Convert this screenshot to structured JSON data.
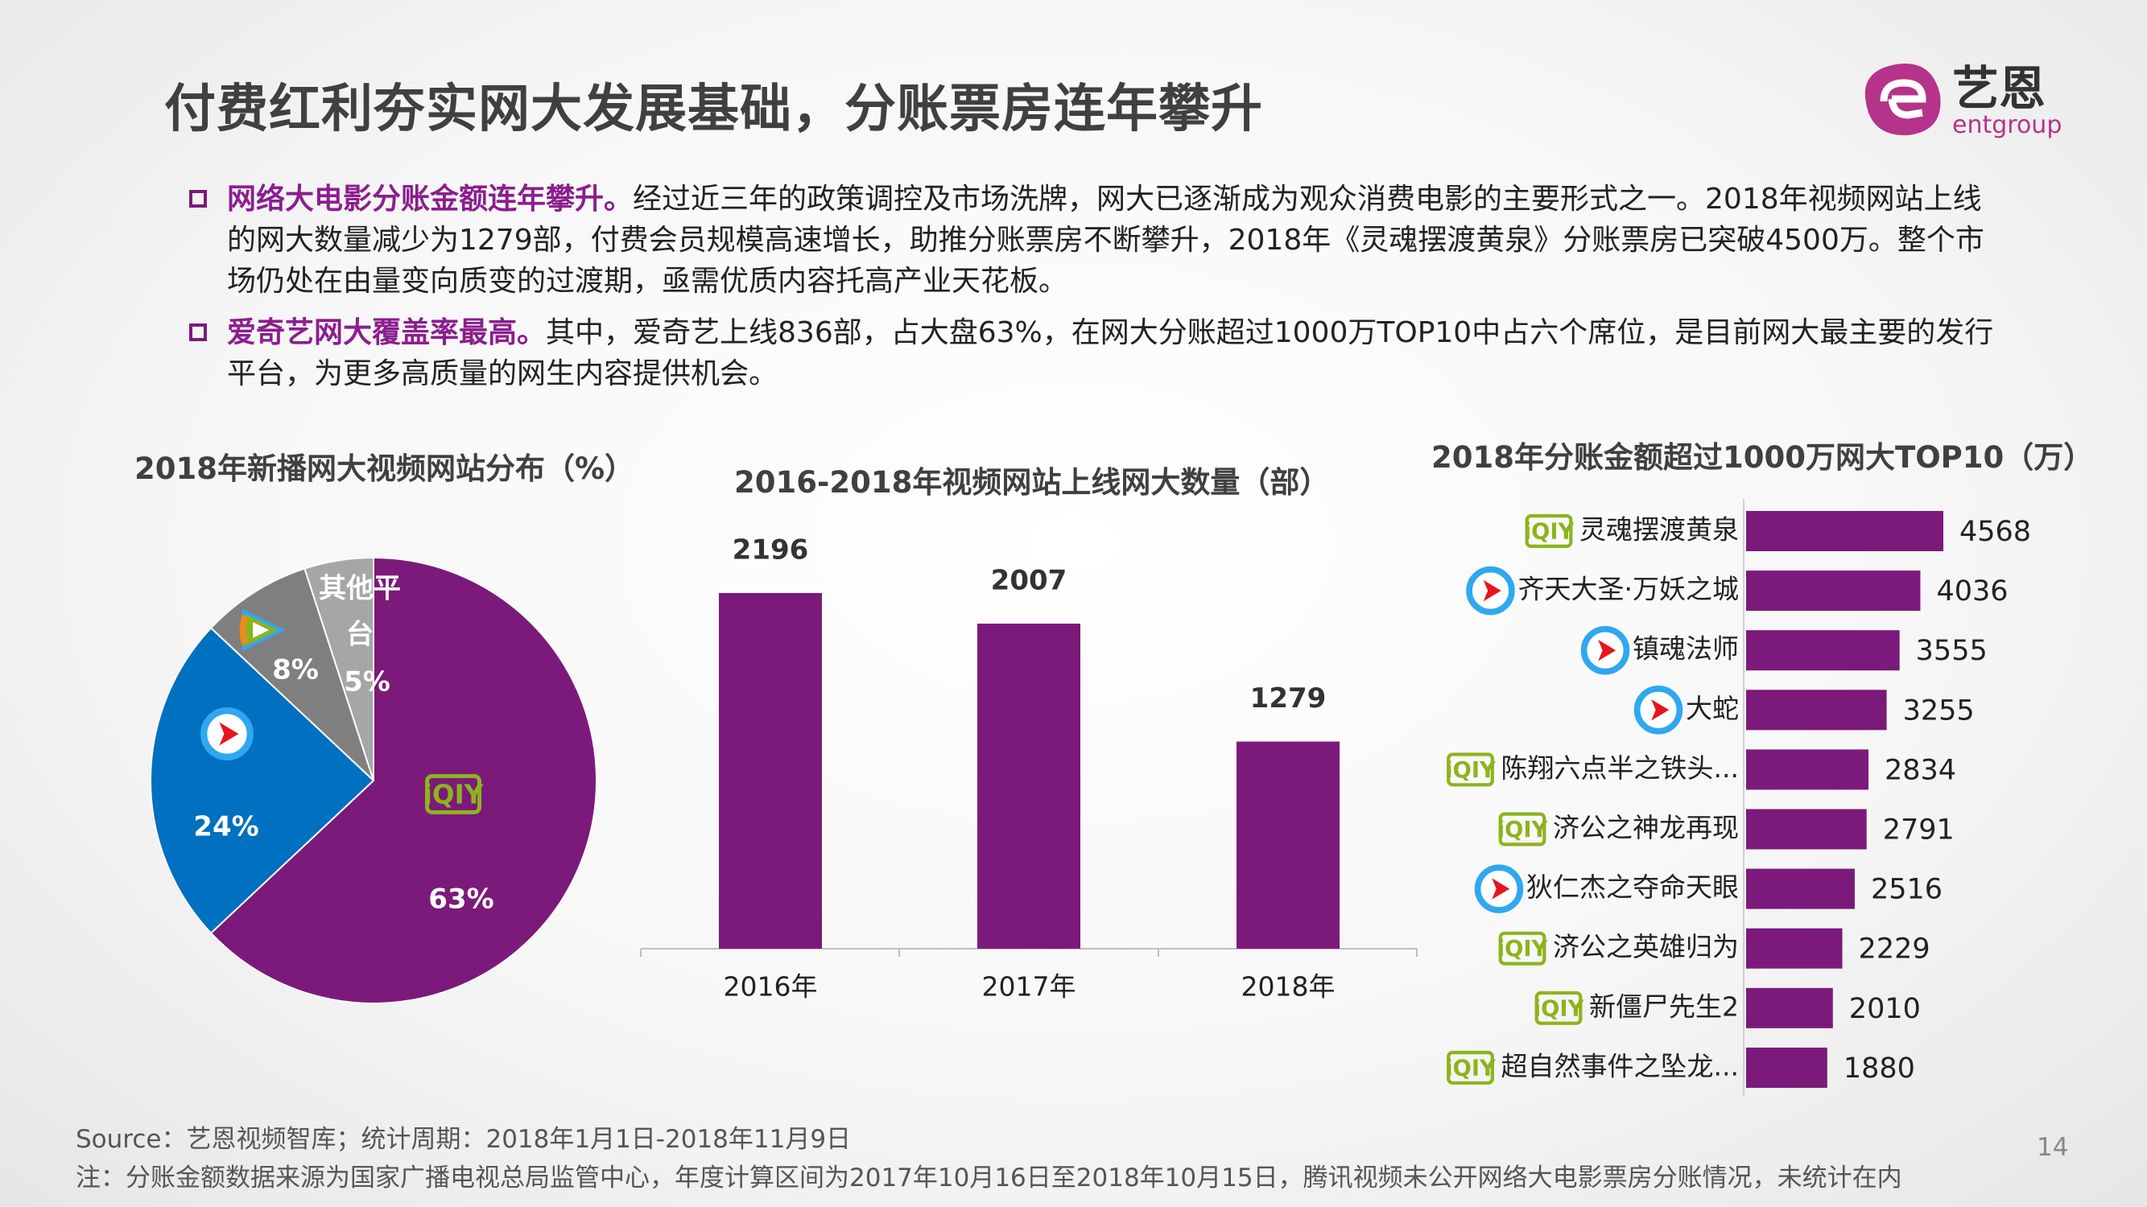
{
  "header": {
    "title": "付费红利夯实网大发展基础，分账票房连年攀升"
  },
  "logo": {
    "cn": "艺恩",
    "en": "entgroup",
    "color": "#B5338A"
  },
  "bullets": [
    {
      "highlight": "网络大电影分账金额连年攀升。",
      "text": "经过近三年的政策调控及市场洗牌，网大已逐渐成为观众消费电影的主要形式之一。2018年视频网站上线的网大数量减少为1279部，付费会员规模高速增长，助推分账票房不断攀升，2018年《灵魂摆渡黄泉》分账票房已突破4500万。整个市场仍处在由量变向质变的过渡期，亟需优质内容托高产业天花板。"
    },
    {
      "highlight": "爱奇艺网大覆盖率最高。",
      "text": "其中，爱奇艺上线836部，占大盘63%，在网大分账超过1000万TOP10中占六个席位，是目前网大最主要的发行平台，为更多高质量的网生内容提供机会。"
    }
  ],
  "chart_data": [
    {
      "type": "pie",
      "title": "2018年新播网大视频网站分布（%）",
      "slices": [
        {
          "platform_icon": "iqiyi-logo",
          "value": 63,
          "label": "63%",
          "color": "#7B1A7A"
        },
        {
          "platform_icon": "youku-logo",
          "value": 24,
          "label": "24%",
          "color": "#0070C0"
        },
        {
          "platform_icon": "tencent-video-logo",
          "value": 8,
          "label": "8%",
          "color": "#7F7F7F"
        },
        {
          "name": "其他平台",
          "name_lines": [
            "其他平",
            "台"
          ],
          "value": 5,
          "label": "5%",
          "color": "#A6A6A6"
        }
      ]
    },
    {
      "type": "bar",
      "title": "2016-2018年视频网站上线网大数量（部）",
      "categories": [
        "2016年",
        "2017年",
        "2018年"
      ],
      "values": [
        2196,
        2007,
        1279
      ],
      "color": "#7B1A7A",
      "ylim": [
        0,
        2196
      ]
    },
    {
      "type": "bar",
      "orientation": "horizontal",
      "title": "2018年分账金额超过1000万网大TOP10（万）",
      "color": "#7B1A7A",
      "items": [
        {
          "name": "灵魂摆渡黄泉",
          "platform": "iqiyi",
          "value": 4568
        },
        {
          "name": "齐天大圣·万妖之城",
          "platform": "youku",
          "value": 4036
        },
        {
          "name": "镇魂法师",
          "platform": "youku",
          "value": 3555
        },
        {
          "name": "大蛇",
          "platform": "youku",
          "value": 3255
        },
        {
          "name": "陈翔六点半之铁头...",
          "platform": "iqiyi",
          "value": 2834
        },
        {
          "name": "济公之神龙再现",
          "platform": "iqiyi",
          "value": 2791
        },
        {
          "name": "狄仁杰之夺命天眼",
          "platform": "youku",
          "value": 2516
        },
        {
          "name": "济公之英雄归为",
          "platform": "iqiyi",
          "value": 2229
        },
        {
          "name": "新僵尸先生2",
          "platform": "iqiyi",
          "value": 2010
        },
        {
          "name": "超自然事件之坠龙...",
          "platform": "iqiyi",
          "value": 1880
        }
      ]
    }
  ],
  "footer": {
    "source": "Source：艺恩视频智库；统计周期：2018年1月1日-2018年11月9日",
    "note": "注：分账金额数据来源为国家广播电视总局监管中心，年度计算区间为2017年10月16日至2018年10月15日，腾讯视频未公开网络大电影票房分账情况，未统计在内",
    "page": "14"
  }
}
